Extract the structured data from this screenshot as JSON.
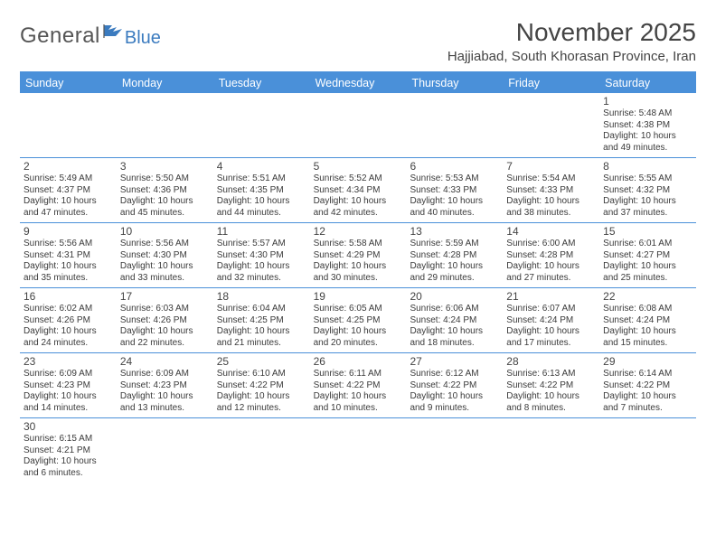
{
  "logo": {
    "general": "General",
    "blue": "Blue"
  },
  "header": {
    "month_title": "November 2025",
    "location": "Hajjiabad, South Khorasan Province, Iran"
  },
  "colors": {
    "header_bg": "#4a90d9",
    "header_text": "#ffffff",
    "border": "#4a90d9",
    "text": "#3a3a3a"
  },
  "day_names": [
    "Sunday",
    "Monday",
    "Tuesday",
    "Wednesday",
    "Thursday",
    "Friday",
    "Saturday"
  ],
  "weeks": [
    [
      null,
      null,
      null,
      null,
      null,
      null,
      {
        "n": "1",
        "sunrise": "Sunrise: 5:48 AM",
        "sunset": "Sunset: 4:38 PM",
        "daylight": "Daylight: 10 hours and 49 minutes."
      }
    ],
    [
      {
        "n": "2",
        "sunrise": "Sunrise: 5:49 AM",
        "sunset": "Sunset: 4:37 PM",
        "daylight": "Daylight: 10 hours and 47 minutes."
      },
      {
        "n": "3",
        "sunrise": "Sunrise: 5:50 AM",
        "sunset": "Sunset: 4:36 PM",
        "daylight": "Daylight: 10 hours and 45 minutes."
      },
      {
        "n": "4",
        "sunrise": "Sunrise: 5:51 AM",
        "sunset": "Sunset: 4:35 PM",
        "daylight": "Daylight: 10 hours and 44 minutes."
      },
      {
        "n": "5",
        "sunrise": "Sunrise: 5:52 AM",
        "sunset": "Sunset: 4:34 PM",
        "daylight": "Daylight: 10 hours and 42 minutes."
      },
      {
        "n": "6",
        "sunrise": "Sunrise: 5:53 AM",
        "sunset": "Sunset: 4:33 PM",
        "daylight": "Daylight: 10 hours and 40 minutes."
      },
      {
        "n": "7",
        "sunrise": "Sunrise: 5:54 AM",
        "sunset": "Sunset: 4:33 PM",
        "daylight": "Daylight: 10 hours and 38 minutes."
      },
      {
        "n": "8",
        "sunrise": "Sunrise: 5:55 AM",
        "sunset": "Sunset: 4:32 PM",
        "daylight": "Daylight: 10 hours and 37 minutes."
      }
    ],
    [
      {
        "n": "9",
        "sunrise": "Sunrise: 5:56 AM",
        "sunset": "Sunset: 4:31 PM",
        "daylight": "Daylight: 10 hours and 35 minutes."
      },
      {
        "n": "10",
        "sunrise": "Sunrise: 5:56 AM",
        "sunset": "Sunset: 4:30 PM",
        "daylight": "Daylight: 10 hours and 33 minutes."
      },
      {
        "n": "11",
        "sunrise": "Sunrise: 5:57 AM",
        "sunset": "Sunset: 4:30 PM",
        "daylight": "Daylight: 10 hours and 32 minutes."
      },
      {
        "n": "12",
        "sunrise": "Sunrise: 5:58 AM",
        "sunset": "Sunset: 4:29 PM",
        "daylight": "Daylight: 10 hours and 30 minutes."
      },
      {
        "n": "13",
        "sunrise": "Sunrise: 5:59 AM",
        "sunset": "Sunset: 4:28 PM",
        "daylight": "Daylight: 10 hours and 29 minutes."
      },
      {
        "n": "14",
        "sunrise": "Sunrise: 6:00 AM",
        "sunset": "Sunset: 4:28 PM",
        "daylight": "Daylight: 10 hours and 27 minutes."
      },
      {
        "n": "15",
        "sunrise": "Sunrise: 6:01 AM",
        "sunset": "Sunset: 4:27 PM",
        "daylight": "Daylight: 10 hours and 25 minutes."
      }
    ],
    [
      {
        "n": "16",
        "sunrise": "Sunrise: 6:02 AM",
        "sunset": "Sunset: 4:26 PM",
        "daylight": "Daylight: 10 hours and 24 minutes."
      },
      {
        "n": "17",
        "sunrise": "Sunrise: 6:03 AM",
        "sunset": "Sunset: 4:26 PM",
        "daylight": "Daylight: 10 hours and 22 minutes."
      },
      {
        "n": "18",
        "sunrise": "Sunrise: 6:04 AM",
        "sunset": "Sunset: 4:25 PM",
        "daylight": "Daylight: 10 hours and 21 minutes."
      },
      {
        "n": "19",
        "sunrise": "Sunrise: 6:05 AM",
        "sunset": "Sunset: 4:25 PM",
        "daylight": "Daylight: 10 hours and 20 minutes."
      },
      {
        "n": "20",
        "sunrise": "Sunrise: 6:06 AM",
        "sunset": "Sunset: 4:24 PM",
        "daylight": "Daylight: 10 hours and 18 minutes."
      },
      {
        "n": "21",
        "sunrise": "Sunrise: 6:07 AM",
        "sunset": "Sunset: 4:24 PM",
        "daylight": "Daylight: 10 hours and 17 minutes."
      },
      {
        "n": "22",
        "sunrise": "Sunrise: 6:08 AM",
        "sunset": "Sunset: 4:24 PM",
        "daylight": "Daylight: 10 hours and 15 minutes."
      }
    ],
    [
      {
        "n": "23",
        "sunrise": "Sunrise: 6:09 AM",
        "sunset": "Sunset: 4:23 PM",
        "daylight": "Daylight: 10 hours and 14 minutes."
      },
      {
        "n": "24",
        "sunrise": "Sunrise: 6:09 AM",
        "sunset": "Sunset: 4:23 PM",
        "daylight": "Daylight: 10 hours and 13 minutes."
      },
      {
        "n": "25",
        "sunrise": "Sunrise: 6:10 AM",
        "sunset": "Sunset: 4:22 PM",
        "daylight": "Daylight: 10 hours and 12 minutes."
      },
      {
        "n": "26",
        "sunrise": "Sunrise: 6:11 AM",
        "sunset": "Sunset: 4:22 PM",
        "daylight": "Daylight: 10 hours and 10 minutes."
      },
      {
        "n": "27",
        "sunrise": "Sunrise: 6:12 AM",
        "sunset": "Sunset: 4:22 PM",
        "daylight": "Daylight: 10 hours and 9 minutes."
      },
      {
        "n": "28",
        "sunrise": "Sunrise: 6:13 AM",
        "sunset": "Sunset: 4:22 PM",
        "daylight": "Daylight: 10 hours and 8 minutes."
      },
      {
        "n": "29",
        "sunrise": "Sunrise: 6:14 AM",
        "sunset": "Sunset: 4:22 PM",
        "daylight": "Daylight: 10 hours and 7 minutes."
      }
    ],
    [
      {
        "n": "30",
        "sunrise": "Sunrise: 6:15 AM",
        "sunset": "Sunset: 4:21 PM",
        "daylight": "Daylight: 10 hours and 6 minutes."
      },
      null,
      null,
      null,
      null,
      null,
      null
    ]
  ]
}
